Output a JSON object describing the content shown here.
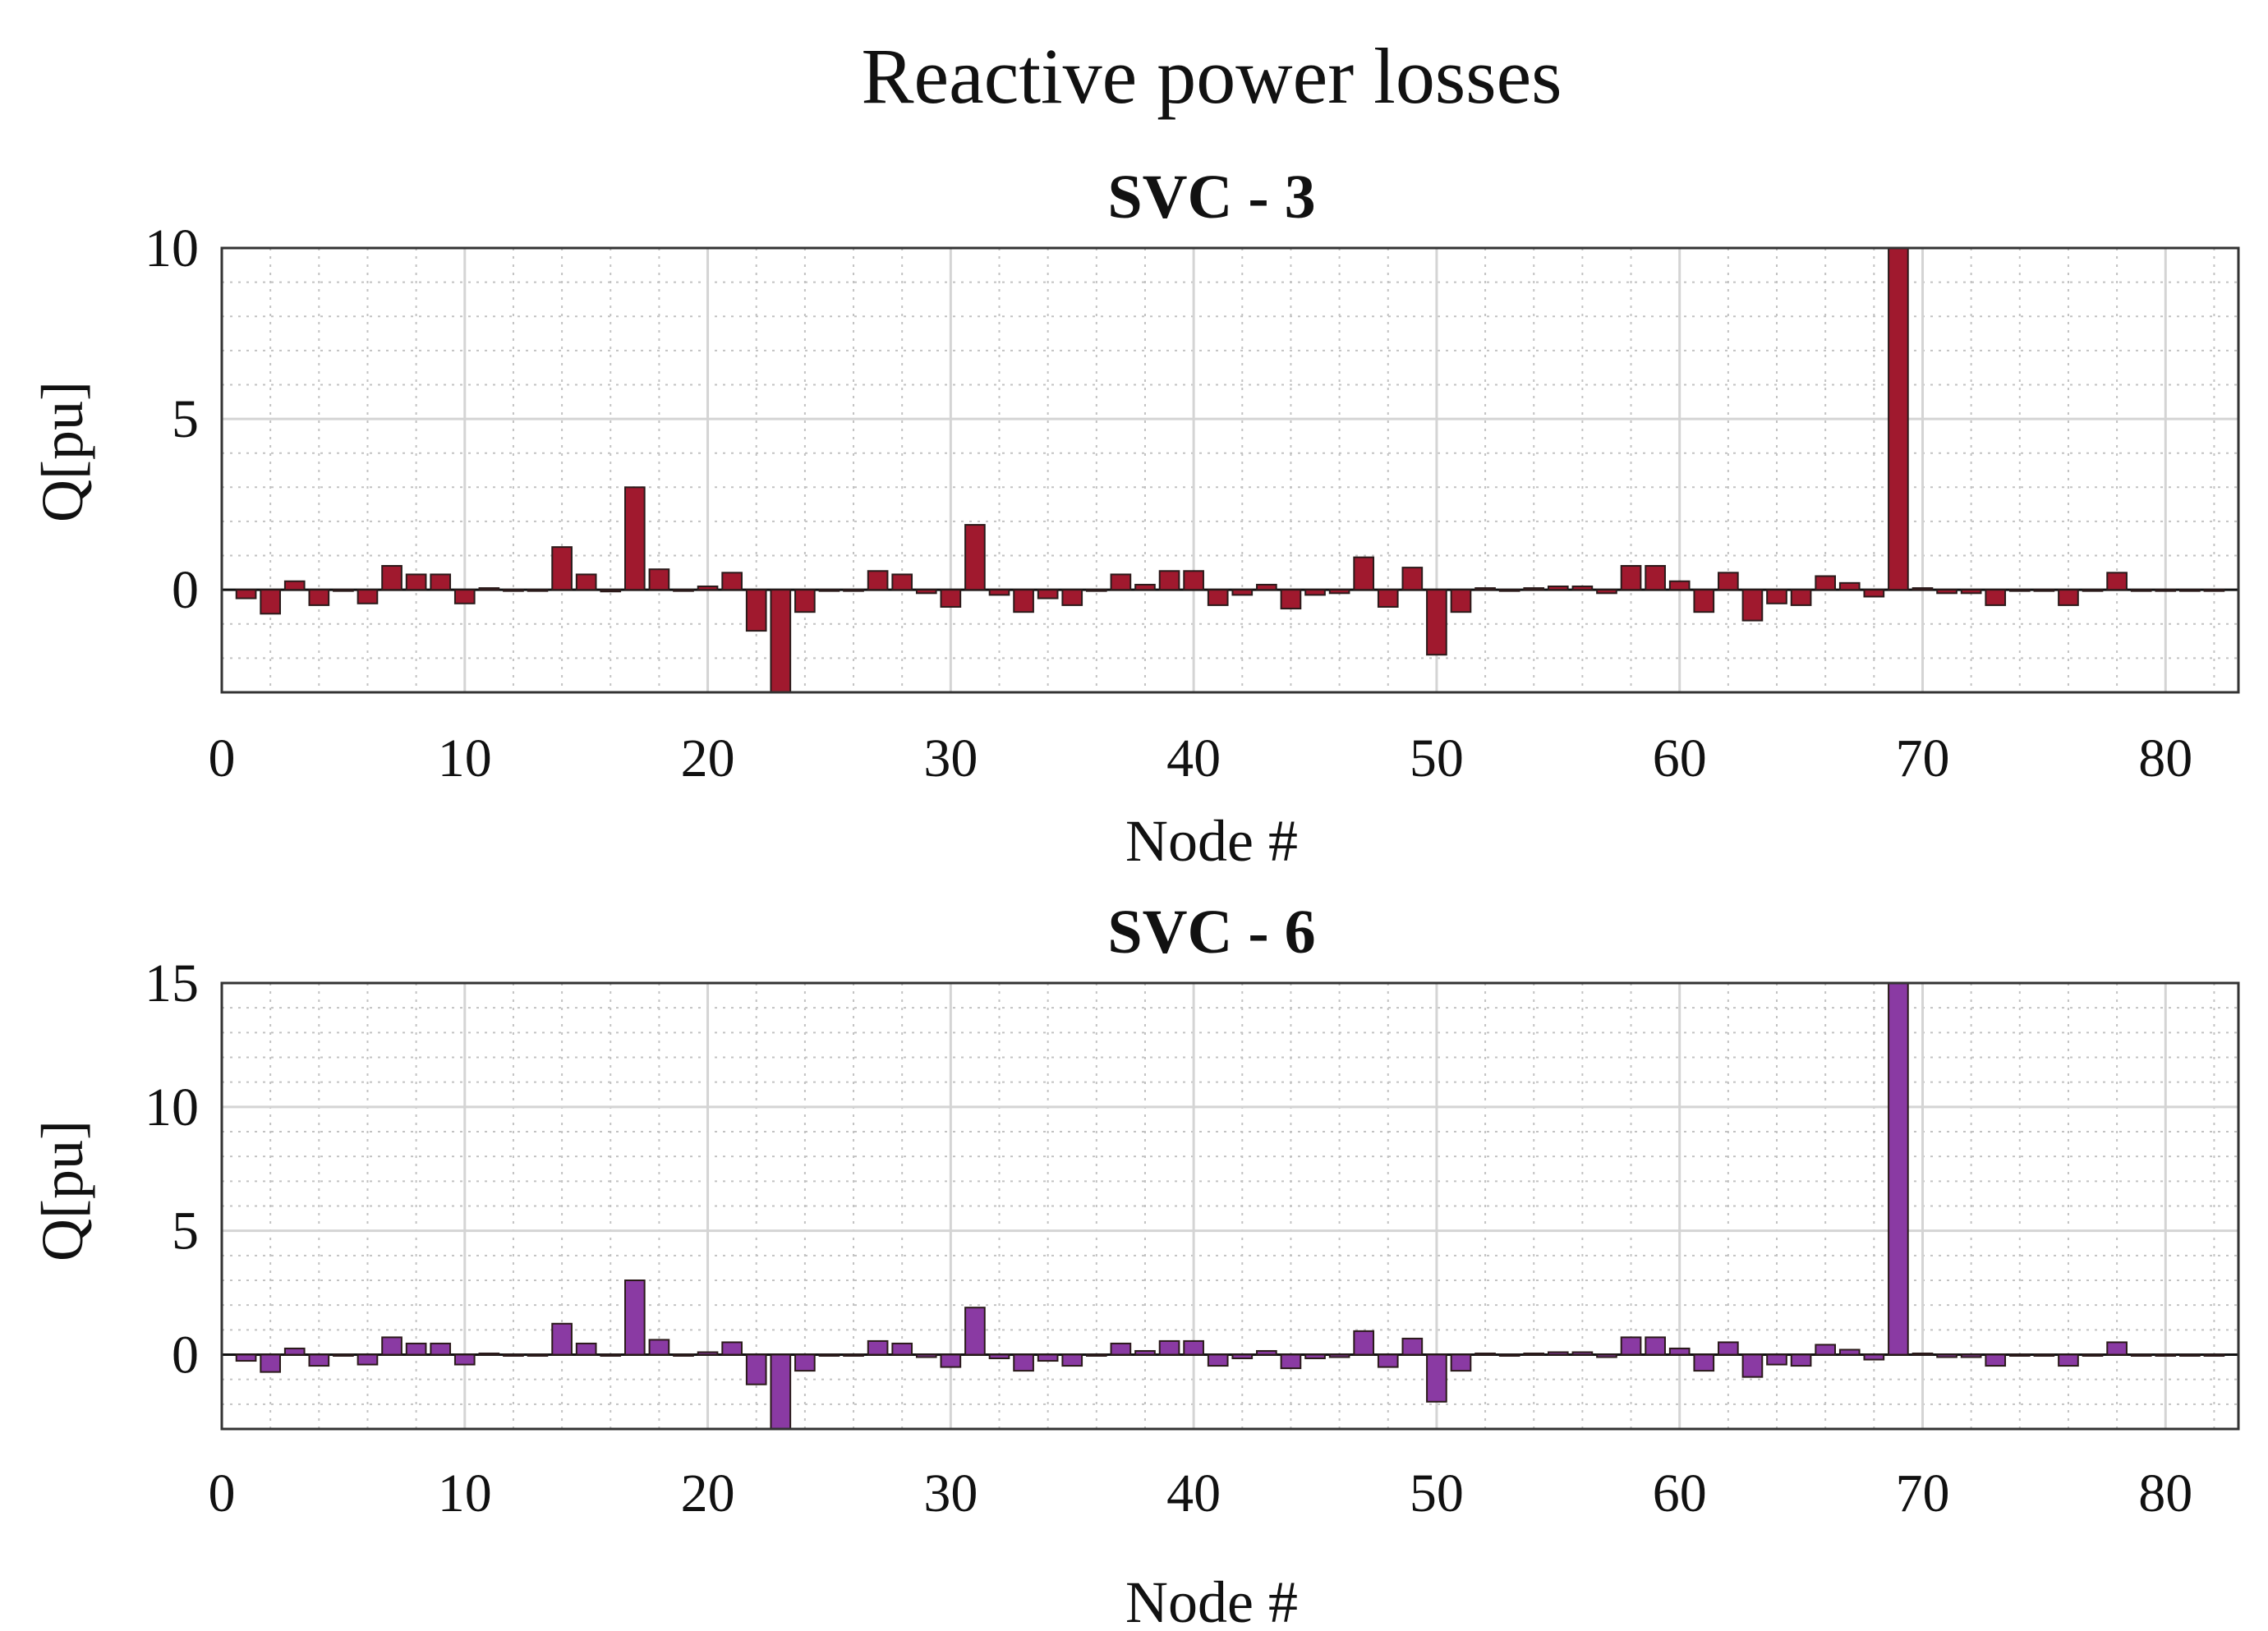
{
  "figure_title": "Reactive power losses",
  "colors": {
    "svc3": "#a0192e",
    "svc6": "#8a3aa3",
    "grid_major": "#d4d4d4",
    "grid_minor": "#c2c2c2"
  },
  "chart_data": [
    {
      "type": "bar",
      "title": "SVC - 3",
      "xlabel": "Node #",
      "ylabel": "Q[pu]",
      "xlim": [
        0,
        83
      ],
      "ylim": [
        -3,
        10
      ],
      "xticks": [
        0,
        10,
        20,
        30,
        40,
        50,
        60,
        70,
        80
      ],
      "yticks": [
        0,
        5,
        10
      ],
      "grid": true,
      "x": [
        1,
        2,
        3,
        4,
        5,
        6,
        7,
        8,
        9,
        10,
        11,
        12,
        13,
        14,
        15,
        16,
        17,
        18,
        19,
        20,
        21,
        22,
        23,
        24,
        25,
        26,
        27,
        28,
        29,
        30,
        31,
        32,
        33,
        34,
        35,
        36,
        37,
        38,
        39,
        40,
        41,
        42,
        43,
        44,
        45,
        46,
        47,
        48,
        49,
        50,
        51,
        52,
        53,
        54,
        55,
        56,
        57,
        58,
        59,
        60,
        61,
        62,
        63,
        64,
        65,
        66,
        67,
        68,
        69,
        70,
        71,
        72,
        73,
        74,
        75,
        76,
        77,
        78,
        79,
        80,
        81,
        82
      ],
      "values": [
        -0.25,
        -0.7,
        0.25,
        -0.45,
        0,
        -0.4,
        0.7,
        0.45,
        0.45,
        -0.4,
        0.05,
        0,
        0,
        1.25,
        0.45,
        -0.05,
        3.0,
        0.6,
        0,
        0.1,
        0.5,
        -1.2,
        -3.0,
        -0.65,
        0,
        0,
        0.55,
        0.45,
        -0.1,
        -0.5,
        1.9,
        -0.15,
        -0.65,
        -0.25,
        -0.45,
        0,
        0.45,
        0.15,
        0.55,
        0.55,
        -0.45,
        -0.15,
        0.15,
        -0.55,
        -0.15,
        -0.1,
        0.95,
        -0.5,
        0.65,
        -1.9,
        -0.65,
        0.05,
        0,
        0.05,
        0.1,
        0.1,
        -0.1,
        0.7,
        0.7,
        0.25,
        -0.65,
        0.5,
        -0.9,
        -0.4,
        -0.45,
        0.4,
        0.2,
        -0.2,
        10,
        0.05,
        -0.1,
        -0.1,
        -0.45,
        0,
        0,
        -0.45,
        0,
        0.5,
        0,
        0,
        0,
        0
      ]
    },
    {
      "type": "bar",
      "title": "SVC - 6",
      "xlabel": "Node #",
      "ylabel": "Q[pu]",
      "xlim": [
        0,
        83
      ],
      "ylim": [
        -3,
        15
      ],
      "xticks": [
        0,
        10,
        20,
        30,
        40,
        50,
        60,
        70,
        80
      ],
      "yticks": [
        0,
        5,
        10,
        15
      ],
      "grid": true,
      "x": [
        1,
        2,
        3,
        4,
        5,
        6,
        7,
        8,
        9,
        10,
        11,
        12,
        13,
        14,
        15,
        16,
        17,
        18,
        19,
        20,
        21,
        22,
        23,
        24,
        25,
        26,
        27,
        28,
        29,
        30,
        31,
        32,
        33,
        34,
        35,
        36,
        37,
        38,
        39,
        40,
        41,
        42,
        43,
        44,
        45,
        46,
        47,
        48,
        49,
        50,
        51,
        52,
        53,
        54,
        55,
        56,
        57,
        58,
        59,
        60,
        61,
        62,
        63,
        64,
        65,
        66,
        67,
        68,
        69,
        70,
        71,
        72,
        73,
        74,
        75,
        76,
        77,
        78,
        79,
        80,
        81,
        82
      ],
      "values": [
        -0.25,
        -0.7,
        0.25,
        -0.45,
        0,
        -0.4,
        0.7,
        0.45,
        0.45,
        -0.4,
        0.05,
        0,
        0,
        1.25,
        0.45,
        -0.05,
        3.0,
        0.6,
        0,
        0.1,
        0.5,
        -1.2,
        -3.0,
        -0.65,
        0,
        0,
        0.55,
        0.45,
        -0.1,
        -0.5,
        1.9,
        -0.15,
        -0.65,
        -0.25,
        -0.45,
        0,
        0.45,
        0.15,
        0.55,
        0.55,
        -0.45,
        -0.15,
        0.15,
        -0.55,
        -0.15,
        -0.1,
        0.95,
        -0.5,
        0.65,
        -1.9,
        -0.65,
        0.05,
        0,
        0.05,
        0.1,
        0.1,
        -0.1,
        0.7,
        0.7,
        0.25,
        -0.65,
        0.5,
        -0.9,
        -0.4,
        -0.45,
        0.4,
        0.2,
        -0.2,
        15,
        0.05,
        -0.1,
        -0.1,
        -0.45,
        0,
        0,
        -0.45,
        0,
        0.5,
        0,
        0,
        0,
        0
      ]
    }
  ]
}
